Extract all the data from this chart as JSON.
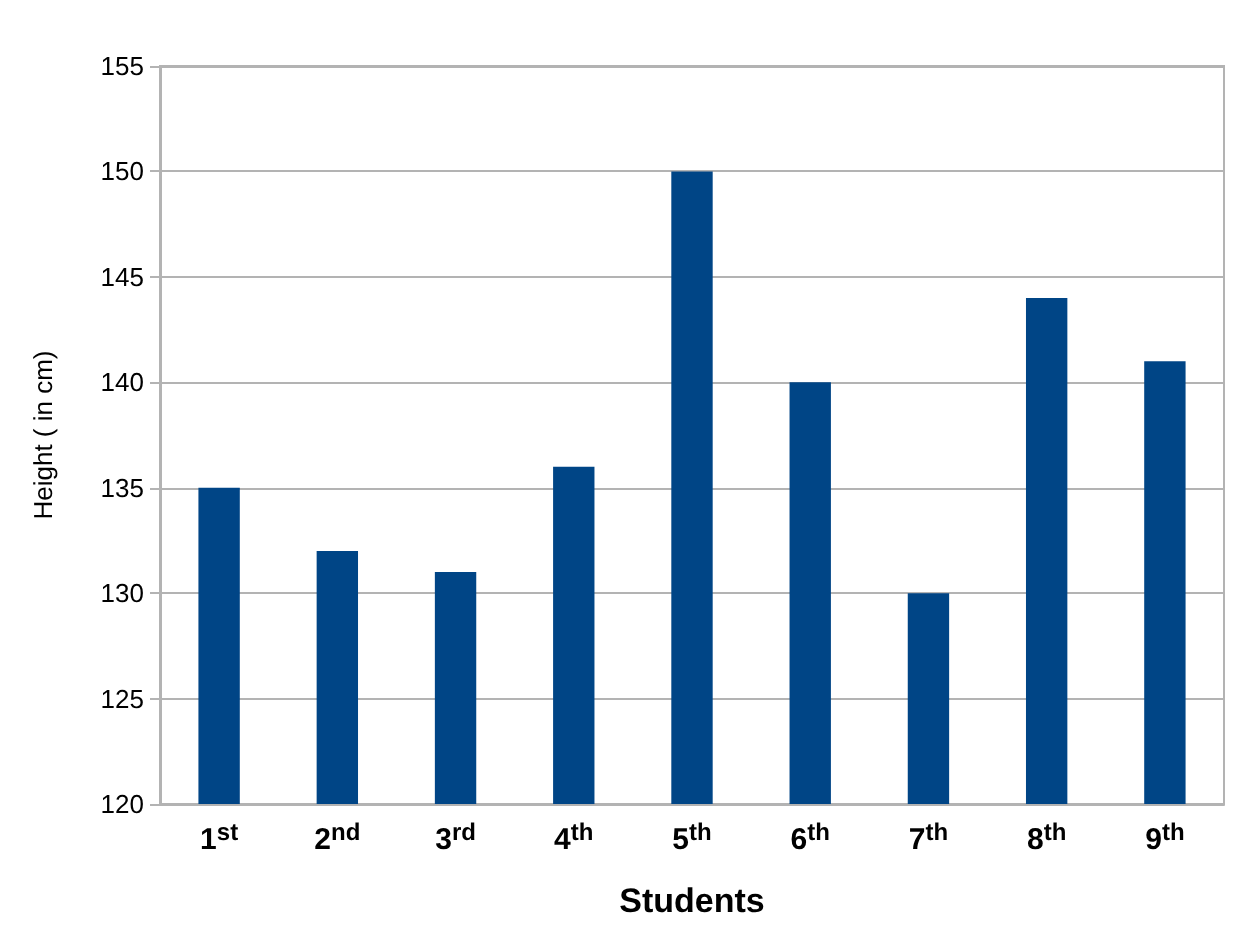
{
  "chart_data": {
    "type": "bar",
    "xlabel": "Students",
    "ylabel": "Height ( in cm)",
    "categories": [
      "1$^{st}$",
      "2$^{nd}$",
      "3$^{rd}$",
      "4$^{th}$",
      "5$^{th}$",
      "6$^{th}$",
      "7$^{th}$",
      "8$^{th}$",
      "9$^{th}$"
    ],
    "values": [
      135,
      132,
      131,
      136,
      150,
      140,
      130,
      144,
      141
    ],
    "color": "#004586",
    "ylim": [
      120,
      155
    ],
    "yticks": [
      120,
      125,
      130,
      135,
      140,
      145,
      150,
      155
    ],
    "grid": "y"
  }
}
